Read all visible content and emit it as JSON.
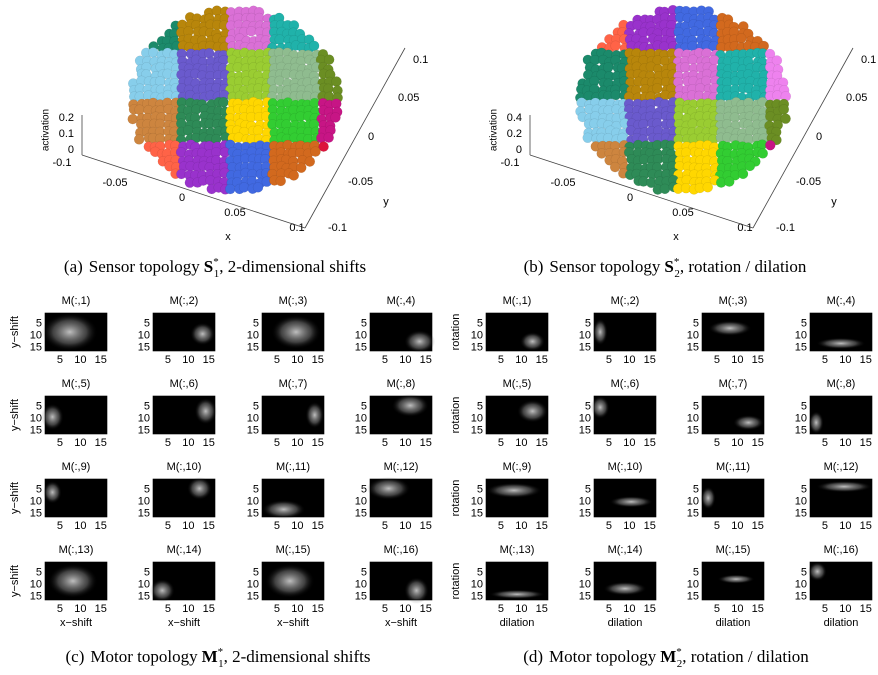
{
  "panel_a": {
    "caption": {
      "label": "(a)",
      "text": "Sensor topology",
      "symbol": "S",
      "sub": "1",
      "sup": "*",
      "rest": ", 2-dimensional shifts"
    },
    "zlabel": "activation",
    "zticks": [
      "0.2",
      "0.1",
      "0"
    ],
    "xlabel": "x",
    "xticks": [
      "-0.1",
      "-0.05",
      "0",
      "0.05",
      "0.1"
    ],
    "ylabel": "y",
    "yticks": [
      "-0.1",
      "-0.05",
      "0",
      "0.05",
      "0.1"
    ]
  },
  "panel_b": {
    "caption": {
      "label": "(b)",
      "text": "Sensor topology",
      "symbol": "S",
      "sub": "2",
      "sup": "*",
      "rest": ", rotation / dilation"
    },
    "zlabel": "activation",
    "zticks": [
      "0.4",
      "0.2",
      "0"
    ],
    "xlabel": "x",
    "xticks": [
      "-0.1",
      "-0.05",
      "0",
      "0.05",
      "0.1"
    ],
    "ylabel": "y",
    "yticks": [
      "-0.1",
      "-0.05",
      "0",
      "0.05",
      "0.1"
    ]
  },
  "panel_c": {
    "caption": {
      "label": "(c)",
      "text": "Motor topology",
      "symbol": "M",
      "sub": "1",
      "sup": "*",
      "rest": ", 2-dimensional shifts"
    },
    "titles": [
      "M(:,1)",
      "M(:,2)",
      "M(:,3)",
      "M(:,4)",
      "M(:,5)",
      "M(:,6)",
      "M(:,7)",
      "M(:,8)",
      "M(:,9)",
      "M(:,10)",
      "M(:,11)",
      "M(:,12)",
      "M(:,13)",
      "M(:,14)",
      "M(:,15)",
      "M(:,16)"
    ],
    "ylabel": "y−shift",
    "yticks": [
      "5",
      "10",
      "15"
    ],
    "xlabel": "x−shift",
    "xticks": [
      "5",
      "10",
      "15"
    ]
  },
  "panel_d": {
    "caption": {
      "label": "(d)",
      "text": "Motor topology",
      "symbol": "M",
      "sub": "2",
      "sup": "*",
      "rest": ", rotation / dilation"
    },
    "titles": [
      "M(:,1)",
      "M(:,2)",
      "M(:,3)",
      "M(:,4)",
      "M(:,5)",
      "M(:,6)",
      "M(:,7)",
      "M(:,8)",
      "M(:,9)",
      "M(:,10)",
      "M(:,11)",
      "M(:,12)",
      "M(:,13)",
      "M(:,14)",
      "M(:,15)",
      "M(:,16)"
    ],
    "ylabel": "rotation",
    "yticks": [
      "5",
      "10",
      "15"
    ],
    "xlabel": "dilation",
    "xticks": [
      "5",
      "10",
      "15"
    ]
  }
}
